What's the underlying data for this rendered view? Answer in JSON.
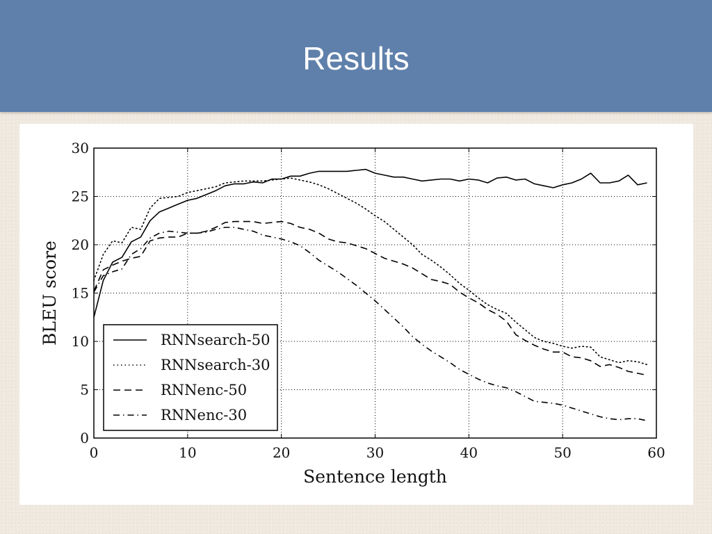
{
  "slide": {
    "title": "Results"
  },
  "chart_data": {
    "type": "line",
    "xlabel": "Sentence length",
    "ylabel": "BLEU score",
    "xlim": [
      0,
      60
    ],
    "ylim": [
      0,
      30
    ],
    "xticks": [
      0,
      10,
      20,
      30,
      40,
      50,
      60
    ],
    "yticks": [
      0,
      5,
      10,
      15,
      20,
      25,
      30
    ],
    "grid": true,
    "legend_position": "lower-left",
    "series": [
      {
        "name": "RNNsearch-50",
        "style": "solid",
        "x": [
          0,
          1,
          2,
          3,
          4,
          5,
          6,
          7,
          8,
          9,
          10,
          11,
          12,
          13,
          14,
          15,
          16,
          17,
          18,
          19,
          20,
          21,
          22,
          23,
          24,
          25,
          26,
          27,
          28,
          29,
          30,
          31,
          32,
          33,
          34,
          35,
          36,
          37,
          38,
          39,
          40,
          41,
          42,
          43,
          44,
          45,
          46,
          47,
          48,
          49,
          50,
          51,
          52,
          53,
          54,
          55,
          56,
          57,
          58,
          59
        ],
        "y": [
          12.5,
          16.3,
          18.2,
          18.7,
          20.3,
          20.8,
          22.5,
          23.4,
          23.8,
          24.2,
          24.6,
          24.8,
          25.2,
          25.6,
          26.1,
          26.3,
          26.3,
          26.5,
          26.4,
          26.8,
          26.8,
          27.1,
          27.1,
          27.4,
          27.6,
          27.6,
          27.6,
          27.6,
          27.7,
          27.8,
          27.4,
          27.2,
          27.0,
          27.0,
          26.8,
          26.6,
          26.7,
          26.8,
          26.8,
          26.6,
          26.8,
          26.7,
          26.4,
          26.9,
          27.0,
          26.7,
          26.8,
          26.3,
          26.1,
          25.9,
          26.2,
          26.4,
          26.8,
          27.4,
          26.4,
          26.4,
          26.6,
          27.2,
          26.2,
          26.4
        ]
      },
      {
        "name": "RNNsearch-30",
        "style": "dotted",
        "x": [
          0,
          1,
          2,
          3,
          4,
          5,
          6,
          7,
          8,
          9,
          10,
          11,
          12,
          13,
          14,
          15,
          16,
          17,
          18,
          19,
          20,
          21,
          22,
          23,
          24,
          25,
          26,
          27,
          28,
          29,
          30,
          31,
          32,
          33,
          34,
          35,
          36,
          37,
          38,
          39,
          40,
          41,
          42,
          43,
          44,
          45,
          46,
          47,
          48,
          49,
          50,
          51,
          52,
          53,
          54,
          55,
          56,
          57,
          58,
          59
        ],
        "y": [
          16.3,
          19.0,
          20.4,
          20.2,
          21.8,
          21.6,
          23.8,
          24.8,
          24.9,
          25.0,
          25.4,
          25.6,
          25.8,
          26.0,
          26.4,
          26.5,
          26.6,
          26.6,
          26.6,
          26.7,
          26.8,
          26.9,
          26.7,
          26.5,
          26.2,
          25.8,
          25.3,
          24.8,
          24.3,
          23.7,
          23.0,
          22.4,
          21.6,
          20.8,
          20.0,
          19.0,
          18.4,
          17.7,
          16.9,
          16.0,
          15.3,
          14.5,
          13.8,
          13.3,
          12.9,
          12.0,
          11.2,
          10.4,
          10.0,
          9.8,
          9.5,
          9.3,
          9.5,
          9.4,
          8.4,
          8.1,
          7.8,
          8.0,
          7.9,
          7.6
        ]
      },
      {
        "name": "RNNenc-50",
        "style": "dashed",
        "x": [
          0,
          1,
          2,
          3,
          4,
          5,
          6,
          7,
          8,
          9,
          10,
          11,
          12,
          13,
          14,
          15,
          16,
          17,
          18,
          19,
          20,
          21,
          22,
          23,
          24,
          25,
          26,
          27,
          28,
          29,
          30,
          31,
          32,
          33,
          34,
          35,
          36,
          37,
          38,
          39,
          40,
          41,
          42,
          43,
          44,
          45,
          46,
          47,
          48,
          49,
          50,
          51,
          52,
          53,
          54,
          55,
          56,
          57,
          58,
          59
        ],
        "y": [
          15.2,
          17.4,
          17.9,
          18.3,
          18.6,
          18.8,
          20.4,
          20.7,
          20.8,
          20.8,
          21.2,
          21.2,
          21.4,
          21.8,
          22.3,
          22.4,
          22.4,
          22.4,
          22.2,
          22.3,
          22.4,
          22.2,
          21.8,
          21.6,
          21.2,
          20.6,
          20.3,
          20.2,
          19.9,
          19.6,
          19.1,
          18.6,
          18.3,
          18.0,
          17.6,
          17.0,
          16.4,
          16.2,
          15.9,
          15.1,
          14.5,
          14.0,
          13.3,
          12.8,
          12.1,
          10.7,
          10.1,
          9.6,
          9.2,
          8.9,
          8.9,
          8.4,
          8.3,
          8.0,
          7.4,
          7.6,
          7.3,
          6.9,
          6.7,
          6.5
        ]
      },
      {
        "name": "RNNenc-30",
        "style": "dashdot",
        "x": [
          0,
          1,
          2,
          3,
          4,
          5,
          6,
          7,
          8,
          9,
          10,
          11,
          12,
          13,
          14,
          15,
          16,
          17,
          18,
          19,
          20,
          21,
          22,
          23,
          24,
          25,
          26,
          27,
          28,
          29,
          30,
          31,
          32,
          33,
          34,
          35,
          36,
          37,
          38,
          39,
          40,
          41,
          42,
          43,
          44,
          45,
          46,
          47,
          48,
          49,
          50,
          51,
          52,
          53,
          54,
          55,
          56,
          57,
          58,
          59
        ],
        "y": [
          15.1,
          16.8,
          17.2,
          17.5,
          19.0,
          19.6,
          20.7,
          21.2,
          21.4,
          21.3,
          21.2,
          21.2,
          21.3,
          21.6,
          21.8,
          21.8,
          21.6,
          21.4,
          21.0,
          20.8,
          20.6,
          20.3,
          19.9,
          19.2,
          18.4,
          17.8,
          17.2,
          16.5,
          15.8,
          15.0,
          14.2,
          13.3,
          12.4,
          11.5,
          10.5,
          9.7,
          9.0,
          8.4,
          7.8,
          7.1,
          6.6,
          6.1,
          5.7,
          5.4,
          5.2,
          4.8,
          4.3,
          3.8,
          3.7,
          3.6,
          3.4,
          3.1,
          2.8,
          2.5,
          2.2,
          2.0,
          1.9,
          2.0,
          2.0,
          1.8
        ]
      }
    ]
  }
}
